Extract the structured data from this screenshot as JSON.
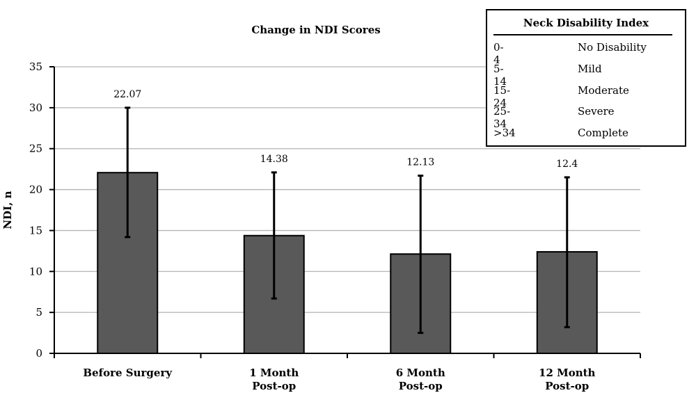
{
  "chart_data": {
    "type": "bar",
    "title": "Change in NDI Scores",
    "ylabel": "NDI, n",
    "xlabel": "",
    "ylim": [
      0,
      35
    ],
    "yticks": [
      0,
      5,
      10,
      15,
      20,
      25,
      30,
      35
    ],
    "grid": true,
    "categories": [
      [
        "Before Surgery"
      ],
      [
        "1 Month",
        "Post-op"
      ],
      [
        "6 Month",
        "Post-op"
      ],
      [
        "12 Month",
        "Post-op"
      ]
    ],
    "values": [
      22.07,
      14.38,
      12.13,
      12.4
    ],
    "value_labels": [
      "22.07",
      "14.38",
      "12.13",
      "12.4"
    ],
    "error_bars": [
      {
        "low": 14.2,
        "high": 30.0
      },
      {
        "low": 6.7,
        "high": 22.1
      },
      {
        "low": 2.5,
        "high": 21.7
      },
      {
        "low": 3.2,
        "high": 21.5
      }
    ],
    "bar_color": "#595959"
  },
  "legend": {
    "title": "Neck Disability Index",
    "rows": [
      {
        "range": "0-4",
        "label": "No Disability"
      },
      {
        "range": "5-14",
        "label": "Mild"
      },
      {
        "range": "15-24",
        "label": "Moderate"
      },
      {
        "range": "25-34",
        "label": "Severe"
      },
      {
        "range": ">34",
        "label": "Complete"
      }
    ]
  }
}
